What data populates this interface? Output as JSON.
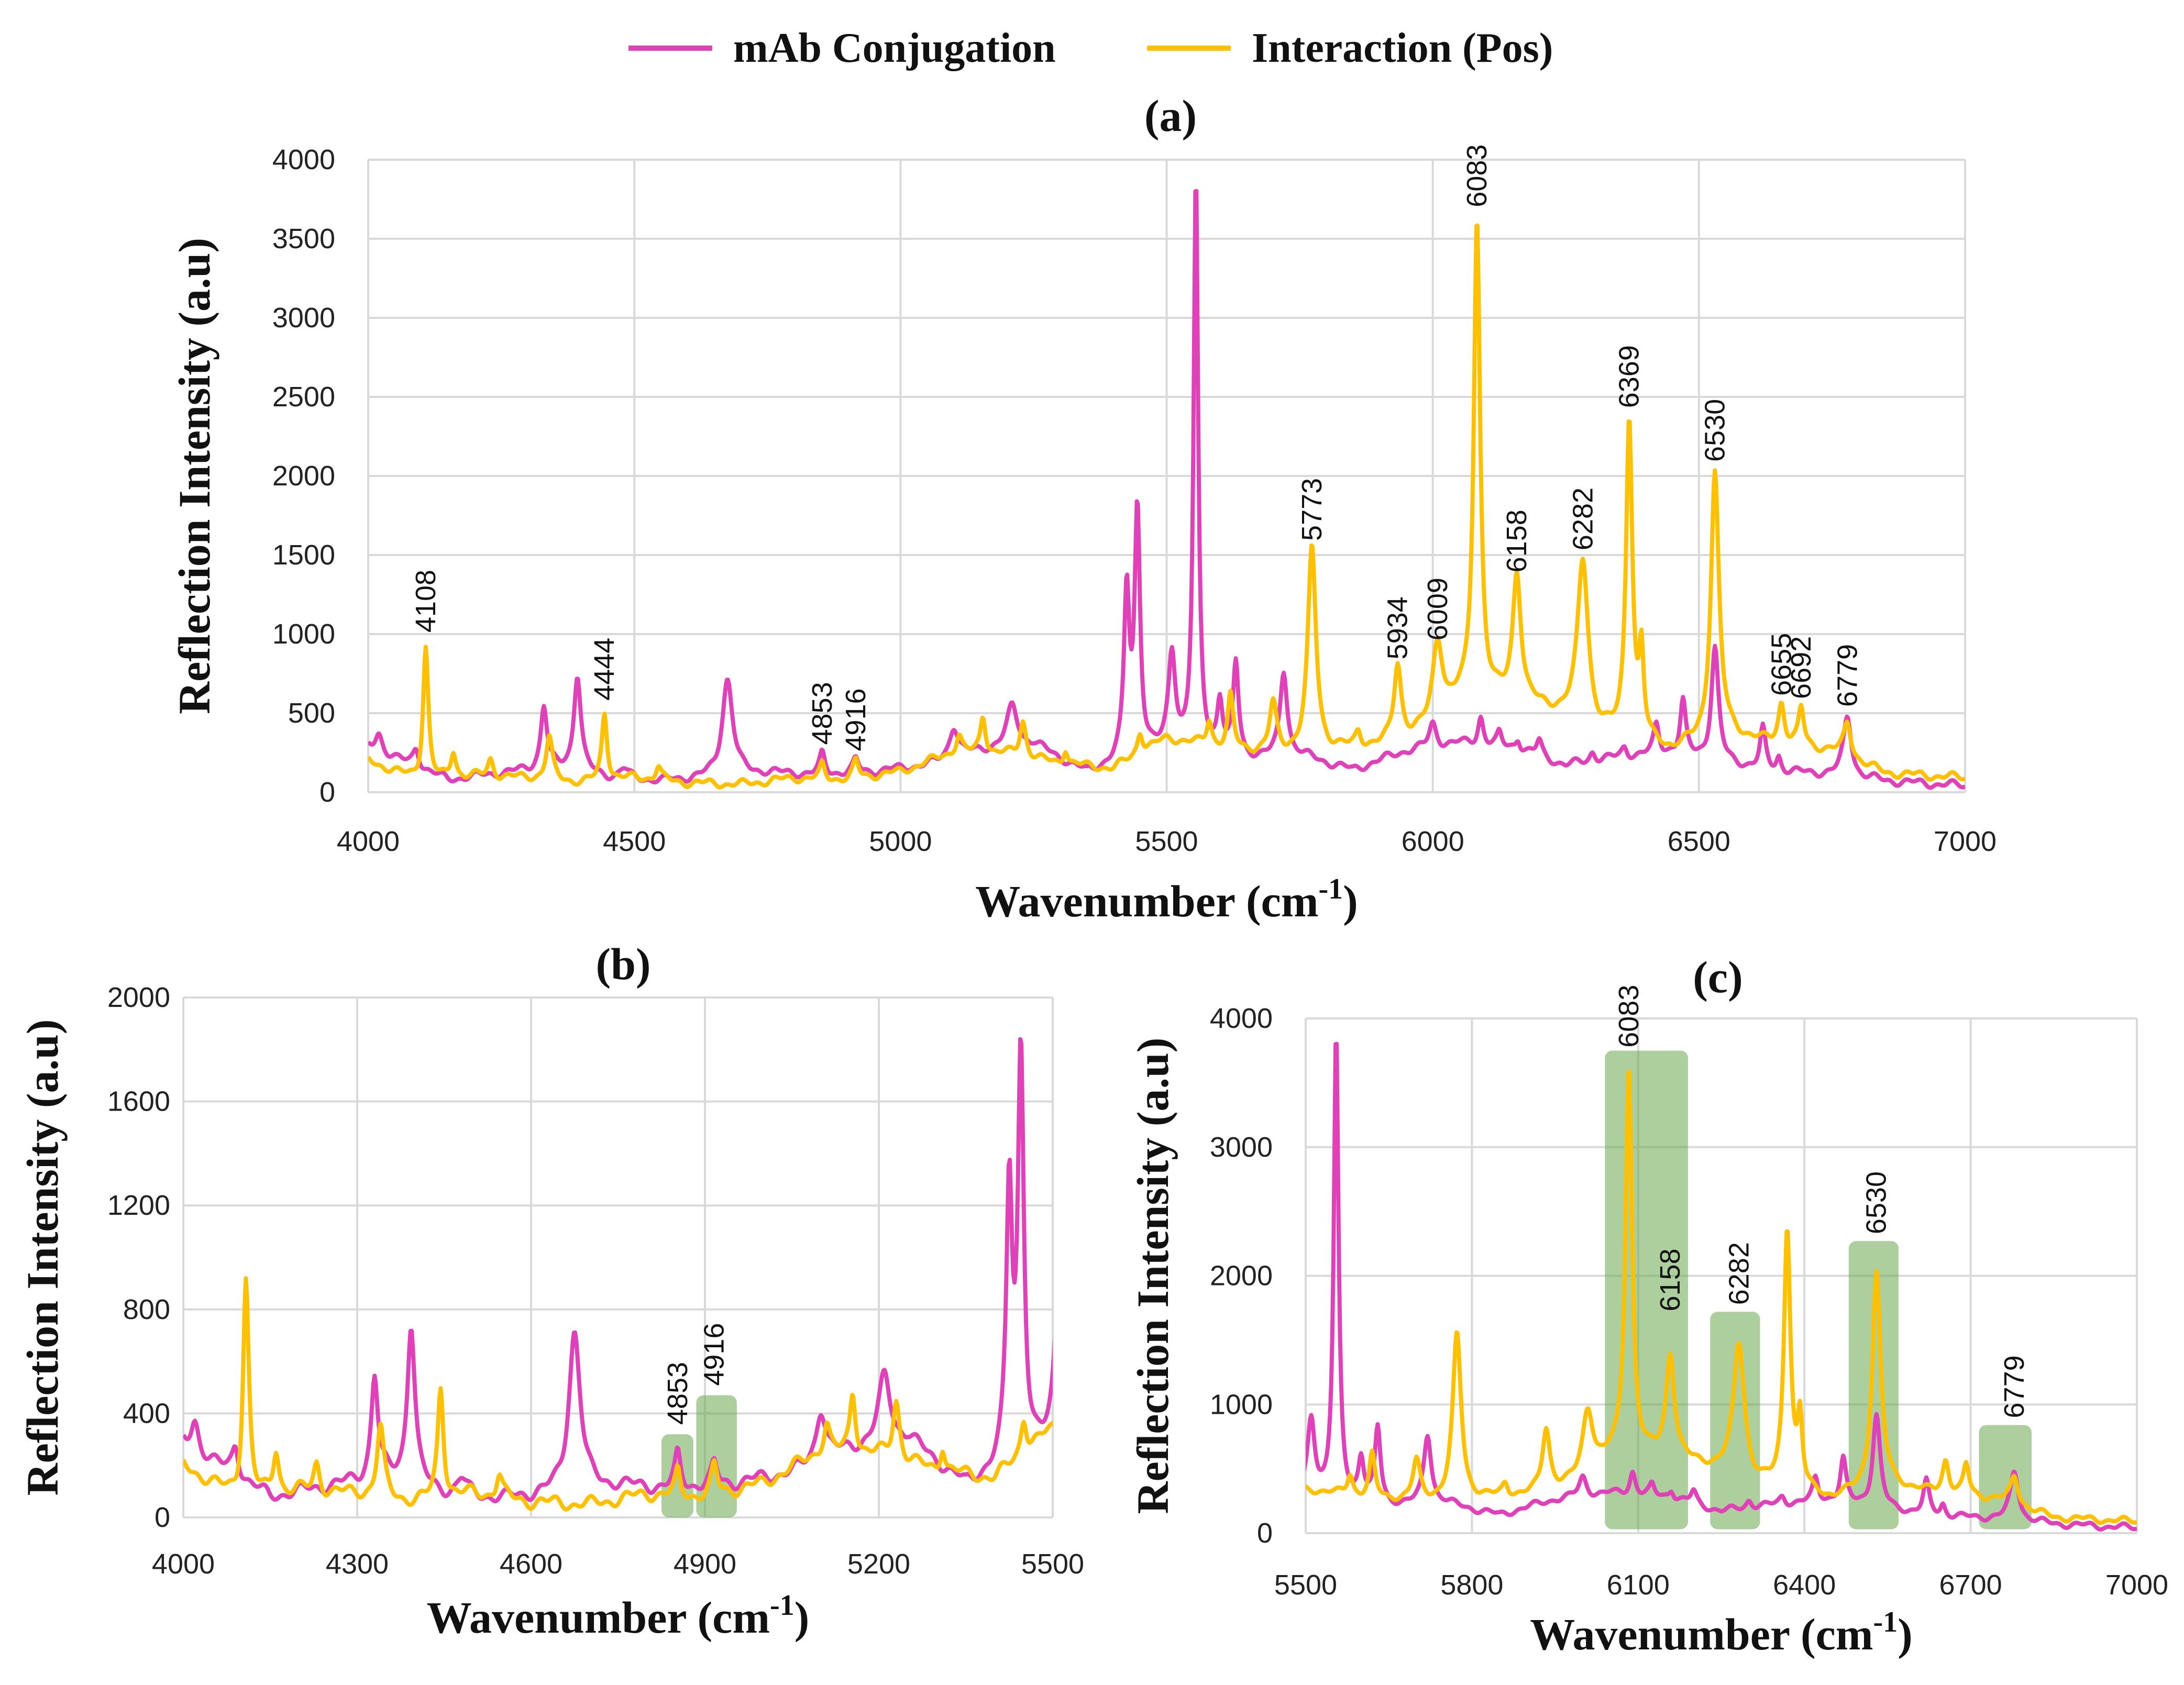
{
  "legend": {
    "series": [
      {
        "name": "mAb Conjugation",
        "color": "#e040b8"
      },
      {
        "name": "Interaction (Pos)",
        "color": "#ffc000"
      }
    ]
  },
  "highlight_color": "#6aa84f",
  "chart_data": [
    {
      "id": "a",
      "type": "line",
      "title": "(a)",
      "xlabel": "Wavenumber (cm-1)",
      "xlabel_base": "Wavenumber (cm",
      "xlabel_sup": "-1",
      "xlabel_end": ")",
      "ylabel": "Reflection Intensity (a.u)",
      "xlim": [
        4000,
        7000
      ],
      "ylim": [
        0,
        4000
      ],
      "xticks": [
        4000,
        4500,
        5000,
        5500,
        6000,
        6500,
        7000
      ],
      "yticks": [
        0,
        500,
        1000,
        1500,
        2000,
        2500,
        3000,
        3500,
        4000
      ],
      "annotations": [
        {
          "text": "4108",
          "x": 4108,
          "y": 950
        },
        {
          "text": "4444",
          "x": 4444,
          "y": 520
        },
        {
          "text": "4853",
          "x": 4853,
          "y": 240
        },
        {
          "text": "4916",
          "x": 4916,
          "y": 200
        },
        {
          "text": "5773",
          "x": 5773,
          "y": 1530
        },
        {
          "text": "5934",
          "x": 5934,
          "y": 780
        },
        {
          "text": "6009",
          "x": 6009,
          "y": 900
        },
        {
          "text": "6083",
          "x": 6083,
          "y": 3640
        },
        {
          "text": "6158",
          "x": 6158,
          "y": 1330
        },
        {
          "text": "6282",
          "x": 6282,
          "y": 1470
        },
        {
          "text": "6369",
          "x": 6369,
          "y": 2370
        },
        {
          "text": "6530",
          "x": 6530,
          "y": 2030
        },
        {
          "text": "6655",
          "x": 6655,
          "y": 550
        },
        {
          "text": "6692",
          "x": 6692,
          "y": 530
        },
        {
          "text": "6779",
          "x": 6779,
          "y": 480
        }
      ],
      "highlights": []
    },
    {
      "id": "b",
      "type": "line",
      "title": "(b)",
      "xlabel": "Wavenumber (cm-1)",
      "xlabel_base": "Wavenumber (cm",
      "xlabel_sup": "-1",
      "xlabel_end": ")",
      "ylabel": "Reflection Intensity (a.u)",
      "xlim": [
        4000,
        5500
      ],
      "ylim": [
        0,
        2000
      ],
      "xticks": [
        4000,
        4300,
        4600,
        4900,
        5200,
        5500
      ],
      "yticks": [
        0,
        400,
        800,
        1200,
        1600,
        2000
      ],
      "annotations": [
        {
          "text": "4853",
          "x": 4853,
          "y": 320
        },
        {
          "text": "4916",
          "x": 4916,
          "y": 470
        }
      ],
      "highlights": [
        {
          "x0": 4825,
          "x1": 4880,
          "y0": 0,
          "y1": 320
        },
        {
          "x0": 4885,
          "x1": 4955,
          "y0": 0,
          "y1": 470
        }
      ]
    },
    {
      "id": "c",
      "type": "line",
      "title": "(c)",
      "xlabel": "Wavenumber (cm-1)",
      "xlabel_base": "Wavenumber (cm",
      "xlabel_sup": "-1",
      "xlabel_end": ")",
      "ylabel": "Reflection Intensity (a.u)",
      "xlim": [
        5500,
        7000
      ],
      "ylim": [
        0,
        4000
      ],
      "xticks": [
        5500,
        5800,
        6100,
        6400,
        6700,
        7000
      ],
      "yticks": [
        0,
        1000,
        2000,
        3000,
        4000
      ],
      "annotations": [
        {
          "text": "6083",
          "x": 6083,
          "y": 3700
        },
        {
          "text": "6158",
          "x": 6158,
          "y": 1650
        },
        {
          "text": "6282",
          "x": 6282,
          "y": 1700
        },
        {
          "text": "6530",
          "x": 6530,
          "y": 2250
        },
        {
          "text": "6779",
          "x": 6779,
          "y": 820
        }
      ],
      "highlights": [
        {
          "x0": 6040,
          "x1": 6190,
          "y0": 30,
          "y1": 3750
        },
        {
          "x0": 6230,
          "x1": 6320,
          "y0": 30,
          "y1": 1720
        },
        {
          "x0": 6480,
          "x1": 6570,
          "y0": 30,
          "y1": 2270
        },
        {
          "x0": 6715,
          "x1": 6810,
          "y0": 30,
          "y1": 840
        }
      ]
    }
  ],
  "spectra": {
    "x_range": [
      4000,
      7000
    ],
    "pink": {
      "baseline": [
        [
          4000,
          280
        ],
        [
          4150,
          80
        ],
        [
          4250,
          120
        ],
        [
          4350,
          150
        ],
        [
          4450,
          90
        ],
        [
          4550,
          70
        ],
        [
          4650,
          90
        ],
        [
          4750,
          120
        ],
        [
          4850,
          110
        ],
        [
          4950,
          130
        ],
        [
          5050,
          170
        ],
        [
          5150,
          260
        ],
        [
          5250,
          300
        ],
        [
          5350,
          120
        ],
        [
          5450,
          230
        ],
        [
          5550,
          260
        ],
        [
          5650,
          210
        ],
        [
          5750,
          230
        ],
        [
          5850,
          140
        ],
        [
          5950,
          260
        ],
        [
          6050,
          310
        ],
        [
          6150,
          280
        ],
        [
          6250,
          170
        ],
        [
          6350,
          220
        ],
        [
          6450,
          250
        ],
        [
          6550,
          180
        ],
        [
          6650,
          130
        ],
        [
          6750,
          110
        ],
        [
          6850,
          70
        ],
        [
          7000,
          40
        ]
      ],
      "peaks": [
        [
          4020,
          120,
          8
        ],
        [
          4090,
          120,
          7
        ],
        [
          4330,
          400,
          7
        ],
        [
          4393,
          620,
          8
        ],
        [
          4480,
          60,
          10
        ],
        [
          4675,
          620,
          12
        ],
        [
          4853,
          130,
          6
        ],
        [
          4916,
          80,
          6
        ],
        [
          5100,
          200,
          10
        ],
        [
          5210,
          260,
          12
        ],
        [
          5425,
          1050,
          6
        ],
        [
          5445,
          1550,
          6
        ],
        [
          5510,
          620,
          8
        ],
        [
          5555,
          3620,
          5
        ],
        [
          5600,
          330,
          6
        ],
        [
          5630,
          580,
          6
        ],
        [
          5720,
          540,
          8
        ],
        [
          6000,
          150,
          8
        ],
        [
          6090,
          180,
          6
        ],
        [
          6125,
          80,
          5
        ],
        [
          6160,
          70,
          5
        ],
        [
          6200,
          100,
          6
        ],
        [
          6300,
          60,
          6
        ],
        [
          6360,
          60,
          6
        ],
        [
          6420,
          180,
          6
        ],
        [
          6470,
          330,
          6
        ],
        [
          6530,
          720,
          8
        ],
        [
          6620,
          250,
          6
        ],
        [
          6650,
          90,
          5
        ],
        [
          6779,
          380,
          9
        ]
      ]
    },
    "gold": {
      "baseline": [
        [
          4000,
          200
        ],
        [
          4100,
          60
        ],
        [
          4200,
          100
        ],
        [
          4300,
          90
        ],
        [
          4400,
          60
        ],
        [
          4500,
          90
        ],
        [
          4600,
          60
        ],
        [
          4700,
          50
        ],
        [
          4800,
          90
        ],
        [
          4900,
          80
        ],
        [
          5000,
          130
        ],
        [
          5100,
          250
        ],
        [
          5200,
          240
        ],
        [
          5300,
          180
        ],
        [
          5400,
          150
        ],
        [
          5500,
          340
        ],
        [
          5600,
          280
        ],
        [
          5700,
          240
        ],
        [
          5800,
          260
        ],
        [
          5900,
          290
        ],
        [
          6000,
          380
        ],
        [
          6050,
          560
        ],
        [
          6150,
          580
        ],
        [
          6250,
          470
        ],
        [
          6300,
          360
        ],
        [
          6400,
          300
        ],
        [
          6450,
          260
        ],
        [
          6550,
          360
        ],
        [
          6650,
          300
        ],
        [
          6750,
          260
        ],
        [
          6850,
          120
        ],
        [
          7000,
          90
        ]
      ],
      "peaks": [
        [
          4108,
          860,
          6
        ],
        [
          4160,
          170,
          6
        ],
        [
          4230,
          110,
          6
        ],
        [
          4340,
          270,
          7
        ],
        [
          4444,
          430,
          6
        ],
        [
          4545,
          90,
          6
        ],
        [
          4853,
          90,
          5
        ],
        [
          4916,
          110,
          6
        ],
        [
          5110,
          110,
          6
        ],
        [
          5155,
          240,
          6
        ],
        [
          5230,
          230,
          7
        ],
        [
          5310,
          100,
          5
        ],
        [
          5450,
          140,
          6
        ],
        [
          5580,
          160,
          6
        ],
        [
          5620,
          330,
          6
        ],
        [
          5700,
          310,
          8
        ],
        [
          5773,
          1290,
          9
        ],
        [
          5860,
          90,
          6
        ],
        [
          5934,
          480,
          8
        ],
        [
          6009,
          530,
          12
        ],
        [
          6083,
          3060,
          7
        ],
        [
          6158,
          800,
          9
        ],
        [
          6282,
          1060,
          12
        ],
        [
          6369,
          2040,
          7
        ],
        [
          6392,
          520,
          5
        ],
        [
          6530,
          1680,
          9
        ],
        [
          6655,
          260,
          7
        ],
        [
          6692,
          240,
          6
        ],
        [
          6779,
          220,
          8
        ]
      ]
    }
  }
}
